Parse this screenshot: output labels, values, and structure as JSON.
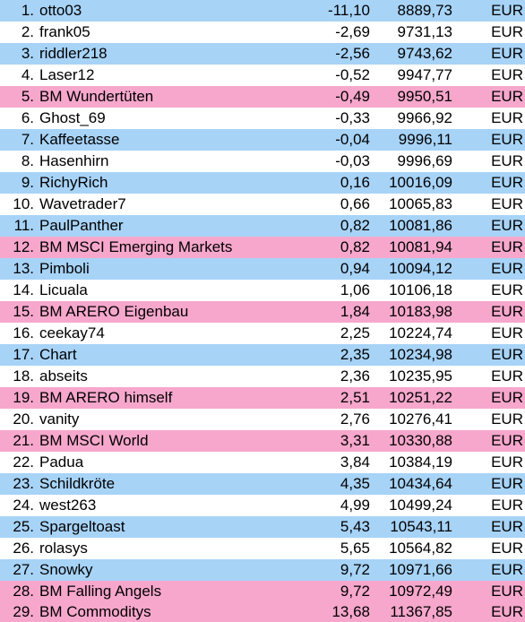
{
  "colors": {
    "blue": "#a7d3f7",
    "white": "#ffffff",
    "pink": "#f7a7cc"
  },
  "rows": [
    {
      "rank": "1.",
      "name": "otto03",
      "change": "-11,10",
      "value": "8889,73",
      "currency": "EUR",
      "color": "blue"
    },
    {
      "rank": "2.",
      "name": "frank05",
      "change": "-2,69",
      "value": "9731,13",
      "currency": "EUR",
      "color": "white"
    },
    {
      "rank": "3.",
      "name": "riddler218",
      "change": "-2,56",
      "value": "9743,62",
      "currency": "EUR",
      "color": "blue"
    },
    {
      "rank": "4.",
      "name": "Laser12",
      "change": "-0,52",
      "value": "9947,77",
      "currency": "EUR",
      "color": "white"
    },
    {
      "rank": "5.",
      "name": "BM Wundertüten",
      "change": "-0,49",
      "value": "9950,51",
      "currency": "EUR",
      "color": "pink"
    },
    {
      "rank": "6.",
      "name": "Ghost_69",
      "change": "-0,33",
      "value": "9966,92",
      "currency": "EUR",
      "color": "white"
    },
    {
      "rank": "7.",
      "name": "Kaffeetasse",
      "change": "-0,04",
      "value": "9996,11",
      "currency": "EUR",
      "color": "blue"
    },
    {
      "rank": "8.",
      "name": "Hasenhirn",
      "change": "-0,03",
      "value": "9996,69",
      "currency": "EUR",
      "color": "white"
    },
    {
      "rank": "9.",
      "name": "RichyRich",
      "change": "0,16",
      "value": "10016,09",
      "currency": "EUR",
      "color": "blue"
    },
    {
      "rank": "10.",
      "name": "Wavetrader7",
      "change": "0,66",
      "value": "10065,83",
      "currency": "EUR",
      "color": "white"
    },
    {
      "rank": "11.",
      "name": "PaulPanther",
      "change": "0,82",
      "value": "10081,86",
      "currency": "EUR",
      "color": "blue"
    },
    {
      "rank": "12.",
      "name": "BM MSCI Emerging Markets",
      "change": "0,82",
      "value": "10081,94",
      "currency": "EUR",
      "color": "pink"
    },
    {
      "rank": "13.",
      "name": "Pimboli",
      "change": "0,94",
      "value": "10094,12",
      "currency": "EUR",
      "color": "blue"
    },
    {
      "rank": "14.",
      "name": "Licuala",
      "change": "1,06",
      "value": "10106,18",
      "currency": "EUR",
      "color": "white"
    },
    {
      "rank": "15.",
      "name": "BM ARERO Eigenbau",
      "change": "1,84",
      "value": "10183,98",
      "currency": "EUR",
      "color": "pink"
    },
    {
      "rank": "16.",
      "name": "ceekay74",
      "change": "2,25",
      "value": "10224,74",
      "currency": "EUR",
      "color": "white"
    },
    {
      "rank": "17.",
      "name": "Chart",
      "change": "2,35",
      "value": "10234,98",
      "currency": "EUR",
      "color": "blue"
    },
    {
      "rank": "18.",
      "name": "abseits",
      "change": "2,36",
      "value": "10235,95",
      "currency": "EUR",
      "color": "white"
    },
    {
      "rank": "19.",
      "name": "BM ARERO himself",
      "change": "2,51",
      "value": "10251,22",
      "currency": "EUR",
      "color": "pink"
    },
    {
      "rank": "20.",
      "name": "vanity",
      "change": "2,76",
      "value": "10276,41",
      "currency": "EUR",
      "color": "white"
    },
    {
      "rank": "21.",
      "name": "BM MSCI World",
      "change": "3,31",
      "value": "10330,88",
      "currency": "EUR",
      "color": "pink"
    },
    {
      "rank": "22.",
      "name": "Padua",
      "change": "3,84",
      "value": "10384,19",
      "currency": "EUR",
      "color": "white"
    },
    {
      "rank": "23.",
      "name": "Schildkröte",
      "change": "4,35",
      "value": "10434,64",
      "currency": "EUR",
      "color": "blue"
    },
    {
      "rank": "24.",
      "name": "west263",
      "change": "4,99",
      "value": "10499,24",
      "currency": "EUR",
      "color": "white"
    },
    {
      "rank": "25.",
      "name": "Spargeltoast",
      "change": "5,43",
      "value": "10543,11",
      "currency": "EUR",
      "color": "blue"
    },
    {
      "rank": "26.",
      "name": "rolasys",
      "change": "5,65",
      "value": "10564,82",
      "currency": "EUR",
      "color": "white"
    },
    {
      "rank": "27.",
      "name": "Snowky",
      "change": "9,72",
      "value": "10971,66",
      "currency": "EUR",
      "color": "blue"
    },
    {
      "rank": "28.",
      "name": "BM Falling Angels",
      "change": "9,72",
      "value": "10972,49",
      "currency": "EUR",
      "color": "pink"
    },
    {
      "rank": "29.",
      "name": "BM Commoditys",
      "change": "13,68",
      "value": "11367,85",
      "currency": "EUR",
      "color": "pink"
    }
  ]
}
